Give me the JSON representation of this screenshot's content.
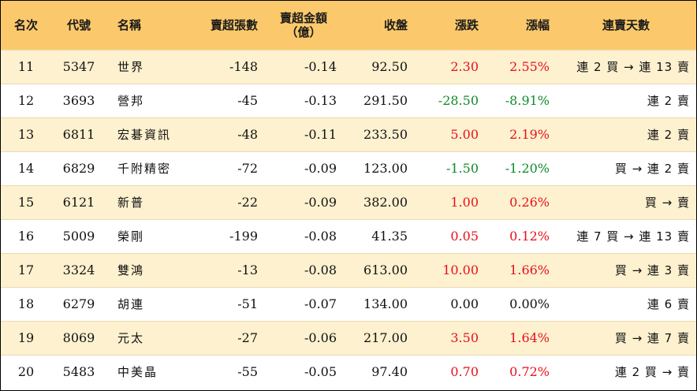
{
  "headers": {
    "rank": "名次",
    "code": "代號",
    "name": "名稱",
    "lots": "賣超張數",
    "amount_line1": "賣超金額",
    "amount_line2": "（億）",
    "close": "收盤",
    "change": "漲跌",
    "pct": "漲幅",
    "streak": "連賣天數"
  },
  "colors": {
    "header_bg": "#fbc96b",
    "odd_row_bg": "#fdf1cf",
    "up": "#e8101c",
    "down": "#0f8a2a"
  },
  "rows": [
    {
      "rank": "11",
      "code": "5347",
      "name": "世界",
      "lots": "-148",
      "amount": "-0.14",
      "close": "92.50",
      "change": "2.30",
      "pct": "2.55%",
      "dir": "up",
      "streak": "連 2 買 → 連 13 賣"
    },
    {
      "rank": "12",
      "code": "3693",
      "name": "營邦",
      "lots": "-45",
      "amount": "-0.13",
      "close": "291.50",
      "change": "-28.50",
      "pct": "-8.91%",
      "dir": "down",
      "streak": "連 2 賣"
    },
    {
      "rank": "13",
      "code": "6811",
      "name": "宏碁資訊",
      "lots": "-48",
      "amount": "-0.11",
      "close": "233.50",
      "change": "5.00",
      "pct": "2.19%",
      "dir": "up",
      "streak": "連 2 賣"
    },
    {
      "rank": "14",
      "code": "6829",
      "name": "千附精密",
      "lots": "-72",
      "amount": "-0.09",
      "close": "123.00",
      "change": "-1.50",
      "pct": "-1.20%",
      "dir": "down",
      "streak": "買 → 連 2 賣"
    },
    {
      "rank": "15",
      "code": "6121",
      "name": "新普",
      "lots": "-22",
      "amount": "-0.09",
      "close": "382.00",
      "change": "1.00",
      "pct": "0.26%",
      "dir": "up",
      "streak": "買 → 賣"
    },
    {
      "rank": "16",
      "code": "5009",
      "name": "榮剛",
      "lots": "-199",
      "amount": "-0.08",
      "close": "41.35",
      "change": "0.05",
      "pct": "0.12%",
      "dir": "up",
      "streak": "連 7 買 → 連 13 賣"
    },
    {
      "rank": "17",
      "code": "3324",
      "name": "雙鴻",
      "lots": "-13",
      "amount": "-0.08",
      "close": "613.00",
      "change": "10.00",
      "pct": "1.66%",
      "dir": "up",
      "streak": "買 → 連 3 賣"
    },
    {
      "rank": "18",
      "code": "6279",
      "name": "胡連",
      "lots": "-51",
      "amount": "-0.07",
      "close": "134.00",
      "change": "0.00",
      "pct": "0.00%",
      "dir": "flat",
      "streak": "連 6 賣"
    },
    {
      "rank": "19",
      "code": "8069",
      "name": "元太",
      "lots": "-27",
      "amount": "-0.06",
      "close": "217.00",
      "change": "3.50",
      "pct": "1.64%",
      "dir": "up",
      "streak": "買 → 連 7 賣"
    },
    {
      "rank": "20",
      "code": "5483",
      "name": "中美晶",
      "lots": "-55",
      "amount": "-0.05",
      "close": "97.40",
      "change": "0.70",
      "pct": "0.72%",
      "dir": "up",
      "streak": "連 2 買 → 賣"
    }
  ]
}
